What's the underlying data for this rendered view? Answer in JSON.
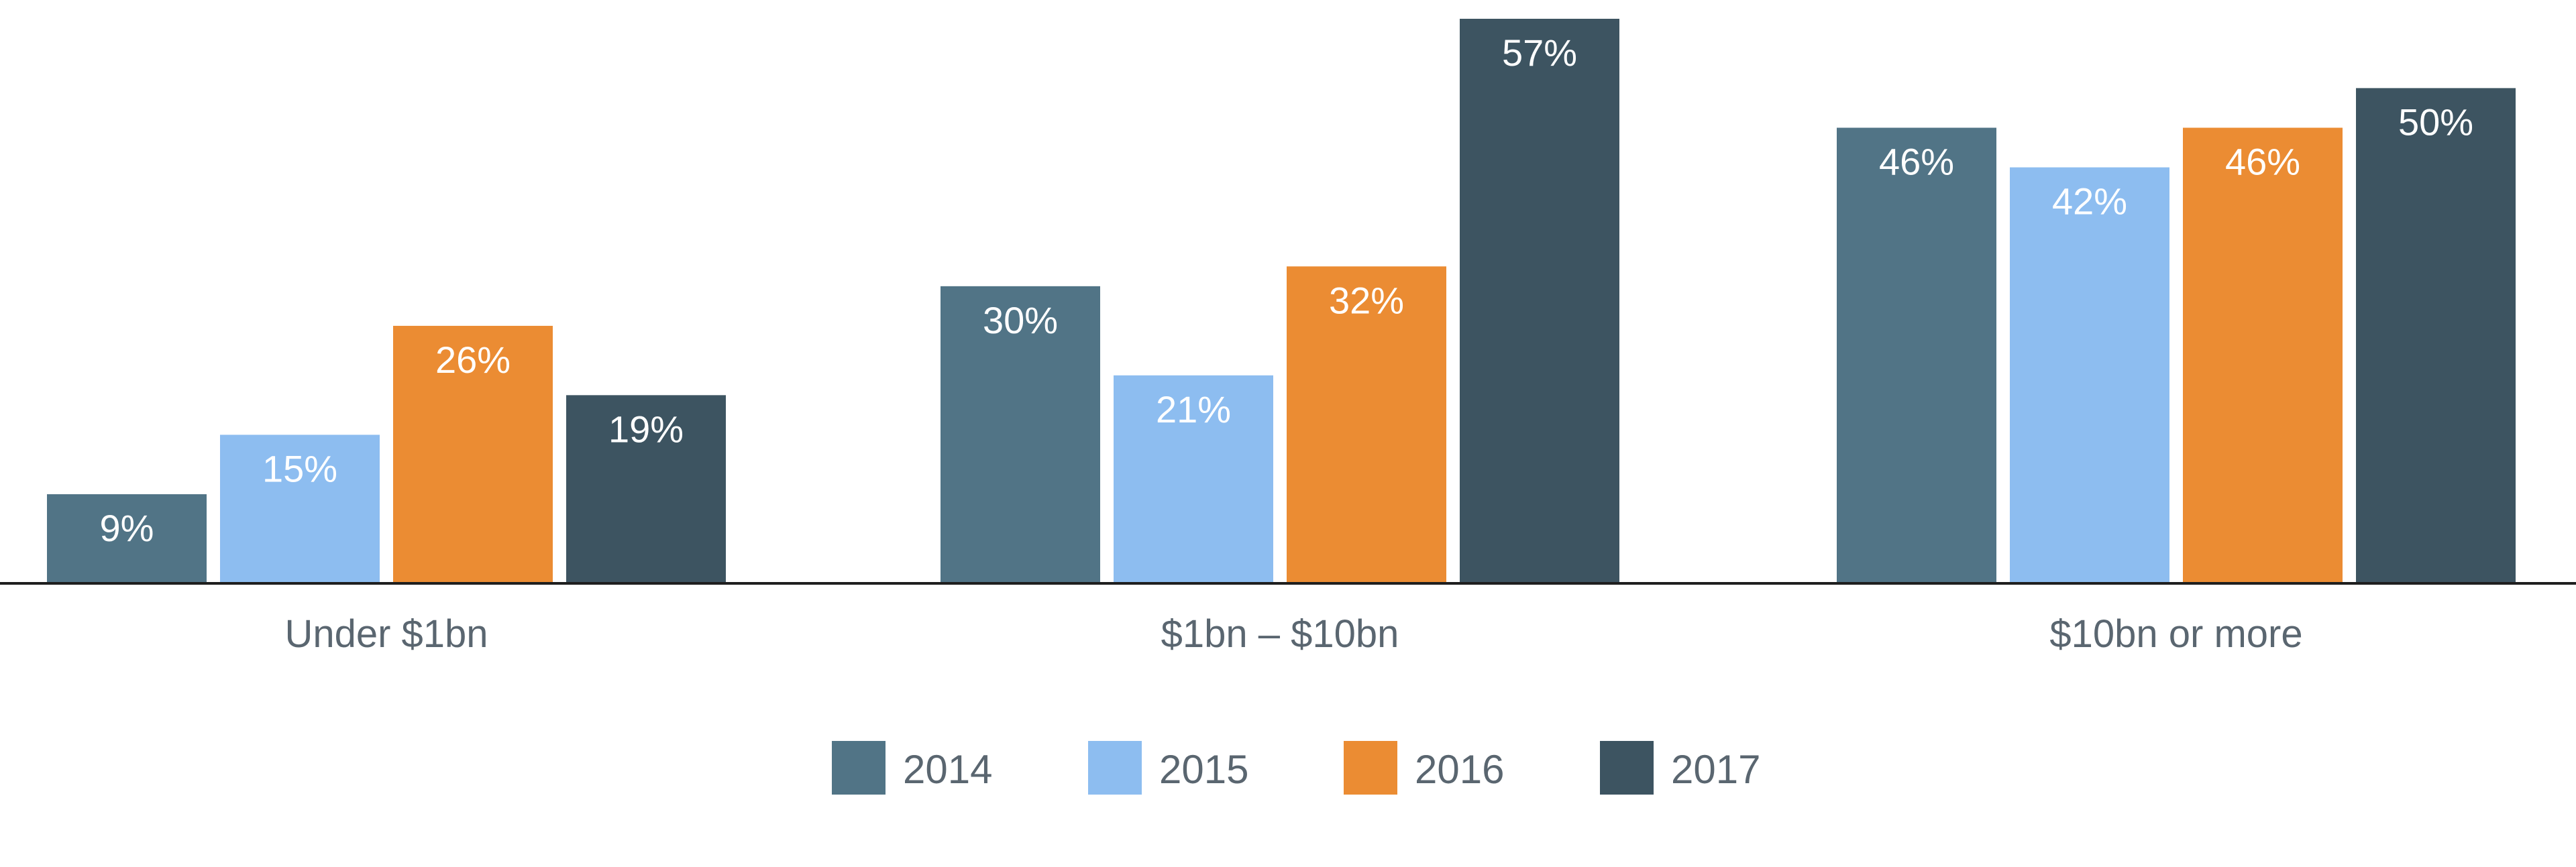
{
  "chart_data": {
    "type": "bar",
    "title": "",
    "xlabel": "",
    "ylabel": "",
    "categories": [
      "Under $1bn",
      "$1bn – $10bn",
      "$10bn or more"
    ],
    "series": [
      {
        "name": "2014",
        "values": [
          9,
          30,
          46
        ],
        "labels": [
          "9%",
          "30%",
          "46%"
        ]
      },
      {
        "name": "2015",
        "values": [
          15,
          21,
          42
        ],
        "labels": [
          "15%",
          "21%",
          "42%"
        ]
      },
      {
        "name": "2016",
        "values": [
          26,
          32,
          46
        ],
        "labels": [
          "26%",
          "32%",
          "46%"
        ]
      },
      {
        "name": "2017",
        "values": [
          19,
          57,
          50
        ],
        "labels": [
          "19%",
          "57%",
          "50%"
        ]
      }
    ],
    "colors": [
      "#517486",
      "#8dbdf0",
      "#eb8c33",
      "#3d5461"
    ],
    "ylim": [
      0,
      57
    ],
    "grid": false,
    "legend": "bottom-center",
    "data_labels": "inside-top"
  }
}
